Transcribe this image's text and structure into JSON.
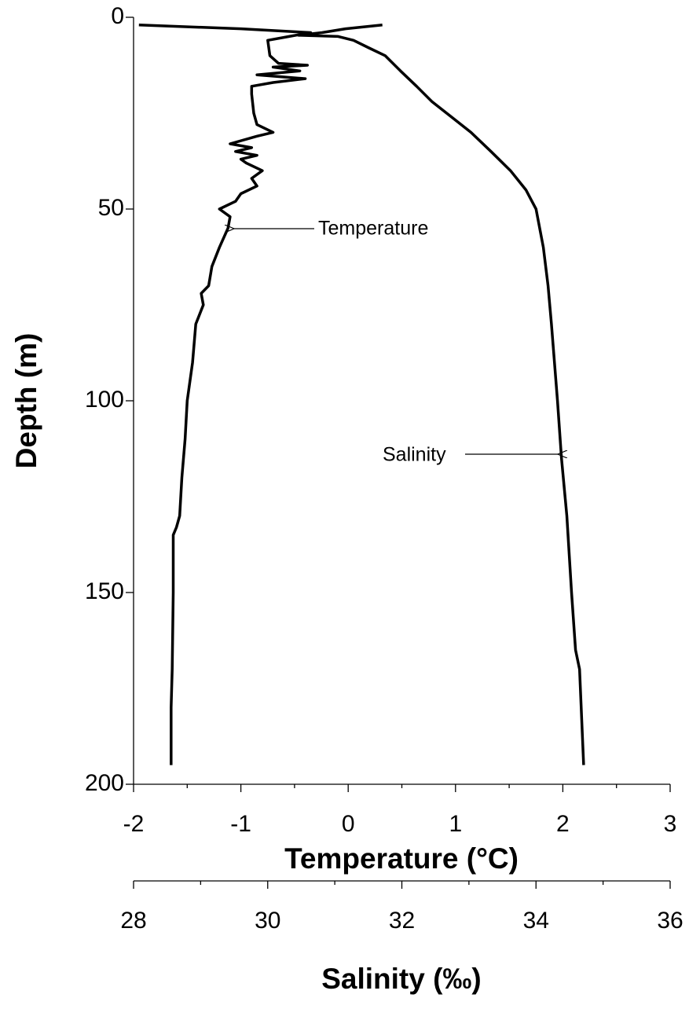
{
  "chart_data": {
    "type": "line",
    "y_label": "Depth (m)",
    "ylim": [
      0,
      200
    ],
    "yticks": [
      0,
      50,
      100,
      150,
      200
    ],
    "y_inverted": true,
    "x_label": "Temperature (°C)",
    "xlim": [
      -2,
      3
    ],
    "xticks": [
      -2,
      -1,
      0,
      1,
      2,
      3
    ],
    "x2_label": "Salinity (‰)",
    "x2lim": [
      28,
      36
    ],
    "x2ticks": [
      28,
      30,
      32,
      34,
      36
    ],
    "series": [
      {
        "name": "Temperature",
        "axis": "x",
        "color": "#000000",
        "depth": [
          2,
          3,
          4,
          5,
          6,
          10,
          12,
          12.5,
          13,
          14,
          15,
          16,
          17,
          18,
          20,
          25,
          28,
          30,
          31,
          33,
          34,
          35,
          36,
          37,
          38,
          40,
          42,
          44,
          46,
          48,
          50,
          52,
          55,
          60,
          65,
          70,
          72,
          75,
          80,
          90,
          100,
          110,
          120,
          130,
          133,
          135,
          150,
          170,
          180,
          195
        ],
        "values": [
          -1.95,
          -1.0,
          -0.35,
          -0.55,
          -0.75,
          -0.73,
          -0.65,
          -0.38,
          -0.7,
          -0.45,
          -0.85,
          -0.4,
          -0.7,
          -0.9,
          -0.9,
          -0.88,
          -0.85,
          -0.7,
          -0.85,
          -1.1,
          -0.9,
          -1.05,
          -0.85,
          -1.0,
          -0.95,
          -0.8,
          -0.9,
          -0.85,
          -1.0,
          -1.05,
          -1.2,
          -1.1,
          -1.12,
          -1.2,
          -1.27,
          -1.3,
          -1.37,
          -1.35,
          -1.42,
          -1.45,
          -1.5,
          -1.52,
          -1.55,
          -1.57,
          -1.6,
          -1.63,
          -1.63,
          -1.64,
          -1.65,
          -1.65
        ]
      },
      {
        "name": "Salinity",
        "axis": "x2",
        "color": "#000000",
        "depth": [
          2,
          3,
          4,
          4.7,
          5,
          6,
          8,
          10,
          14,
          18,
          22,
          26,
          30,
          35,
          40,
          45,
          50,
          60,
          70,
          80,
          100,
          115,
          130,
          150,
          165,
          170,
          195
        ],
        "values": [
          31.71,
          31.16,
          30.81,
          30.46,
          31.05,
          31.28,
          31.51,
          31.75,
          31.98,
          32.22,
          32.45,
          32.74,
          33.03,
          33.33,
          33.62,
          33.85,
          34.0,
          34.11,
          34.18,
          34.23,
          34.32,
          34.38,
          34.46,
          34.53,
          34.59,
          34.65,
          34.71
        ]
      }
    ],
    "annotations": [
      {
        "text": "Temperature"
      },
      {
        "text": "Salinity"
      }
    ]
  }
}
